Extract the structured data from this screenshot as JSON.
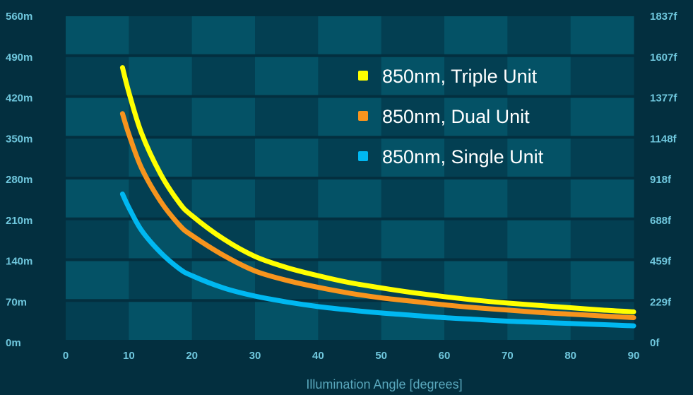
{
  "chart_data": {
    "type": "line",
    "xlabel": "Illumination Angle [degrees]",
    "x_ticks": [
      "0",
      "10",
      "20",
      "30",
      "40",
      "50",
      "60",
      "70",
      "80",
      "90"
    ],
    "xlim": [
      0,
      90
    ],
    "ylim": [
      0,
      560
    ],
    "y_ticks_left": [
      "0m",
      "70m",
      "140m",
      "210m",
      "280m",
      "350m",
      "420m",
      "490m",
      "560m"
    ],
    "y_ticks_right": [
      "0f",
      "229f",
      "459f",
      "688f",
      "918f",
      "1148f",
      "1377f",
      "1607f",
      "1837f"
    ],
    "legend_position": "top-right",
    "series": [
      {
        "name": "850nm, Triple Unit",
        "color": "#ffff00",
        "x": [
          9,
          10,
          12,
          15,
          18,
          20,
          25,
          30,
          35,
          40,
          45,
          50,
          55,
          60,
          65,
          70,
          75,
          80,
          85,
          90
        ],
        "y": [
          472,
          430,
          360,
          290,
          240,
          218,
          178,
          148,
          129,
          115,
          103,
          94,
          86,
          79,
          73,
          68,
          64,
          60,
          56,
          53
        ]
      },
      {
        "name": "850nm, Dual Unit",
        "color": "#f7941d",
        "x": [
          9,
          10,
          12,
          15,
          18,
          20,
          25,
          30,
          35,
          40,
          45,
          50,
          55,
          60,
          65,
          70,
          75,
          80,
          85,
          90
        ],
        "y": [
          393,
          358,
          300,
          243,
          202,
          184,
          150,
          123,
          107,
          95,
          85,
          77,
          71,
          65,
          60,
          56,
          52,
          49,
          46,
          43
        ]
      },
      {
        "name": "850nm, Single Unit",
        "color": "#00b8f1",
        "x": [
          9,
          10,
          12,
          15,
          18,
          20,
          25,
          30,
          35,
          40,
          45,
          50,
          55,
          60,
          65,
          70,
          75,
          80,
          85,
          90
        ],
        "y": [
          255,
          232,
          193,
          155,
          127,
          115,
          94,
          80,
          70,
          62,
          56,
          51,
          47,
          43,
          40,
          37,
          35,
          33,
          31,
          29
        ]
      }
    ]
  }
}
